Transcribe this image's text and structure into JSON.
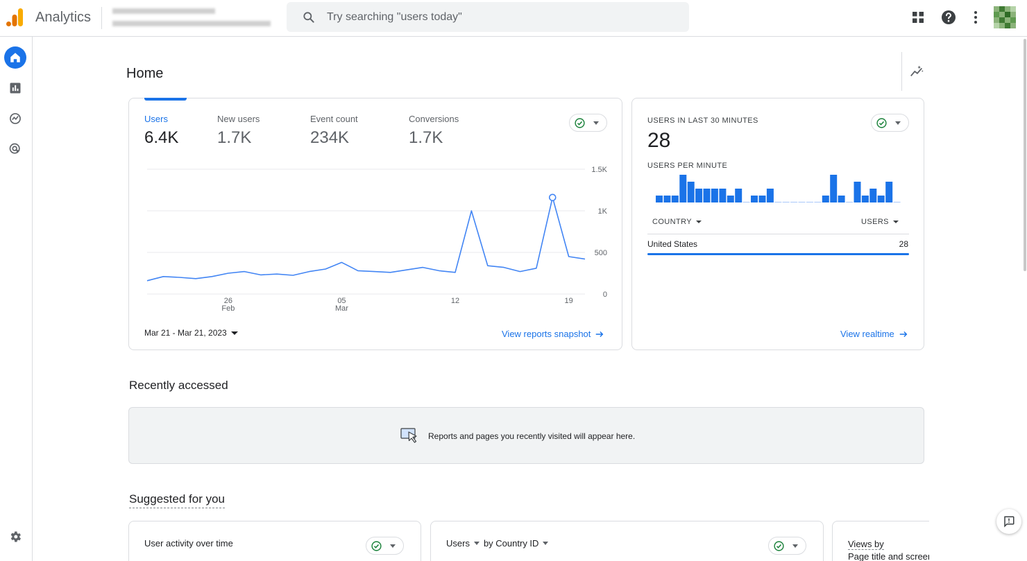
{
  "app": {
    "title": "Analytics"
  },
  "search": {
    "placeholder": "Try searching \"users today\""
  },
  "topbar": {
    "icons": [
      "apps-grid-icon",
      "help-icon",
      "more-vert-icon"
    ]
  },
  "rail": {
    "icons": [
      "home-icon",
      "reports-icon",
      "explore-icon",
      "advertising-icon"
    ],
    "bottom_icon": "settings-icon"
  },
  "home": {
    "title": "Home"
  },
  "overview": {
    "metrics": [
      {
        "label": "Users",
        "value": "6.4K"
      },
      {
        "label": "New users",
        "value": "1.7K"
      },
      {
        "label": "Event count",
        "value": "234K"
      },
      {
        "label": "Conversions",
        "value": "1.7K"
      }
    ],
    "date_range": "Mar 21 - Mar 21, 2023",
    "link": "View reports snapshot"
  },
  "chart_data": {
    "type": "line",
    "series": [
      {
        "values": [
          160,
          210,
          200,
          185,
          210,
          250,
          270,
          230,
          240,
          225,
          270,
          300,
          380,
          280,
          270,
          260,
          290,
          320,
          280,
          260,
          1000,
          340,
          320,
          270,
          310,
          1160,
          450,
          420
        ]
      }
    ],
    "ylim": [
      0,
      1500
    ],
    "y_ticks": [
      {
        "value": 0,
        "label": "0"
      },
      {
        "value": 500,
        "label": "500"
      },
      {
        "value": 1000,
        "label": "1K"
      },
      {
        "value": 1500,
        "label": "1.5K"
      }
    ],
    "x_ticks": [
      {
        "index": 5,
        "label": "26",
        "sub": "Feb"
      },
      {
        "index": 12,
        "label": "05",
        "sub": "Mar"
      },
      {
        "index": 19,
        "label": "12",
        "sub": ""
      },
      {
        "index": 26,
        "label": "19",
        "sub": ""
      }
    ],
    "highlight_index": 25,
    "color": "#4285f4"
  },
  "realtime": {
    "label": "USERS IN LAST 30 MINUTES",
    "value": "28",
    "per_minute_label": "USERS PER MINUTE",
    "per_minute": [
      1,
      1,
      1,
      4,
      3,
      2,
      2,
      2,
      2,
      1,
      2,
      0,
      1,
      1,
      2,
      0,
      0,
      0,
      0,
      0,
      0,
      1,
      4,
      1,
      0,
      3,
      1,
      2,
      1,
      3,
      0
    ],
    "country_header": "COUNTRY",
    "users_header": "USERS",
    "rows": [
      {
        "country": "United States",
        "users": "28"
      }
    ],
    "link": "View realtime"
  },
  "recent": {
    "title": "Recently accessed",
    "empty_text": "Reports and pages you recently visited will appear here."
  },
  "suggested": {
    "title": "Suggested for you",
    "cards": [
      {
        "title": "User activity over time"
      },
      {
        "title_a": "Users",
        "title_b": "by Country ID"
      },
      {
        "line1": "Views by",
        "line2": "Page title and screen class"
      }
    ]
  }
}
